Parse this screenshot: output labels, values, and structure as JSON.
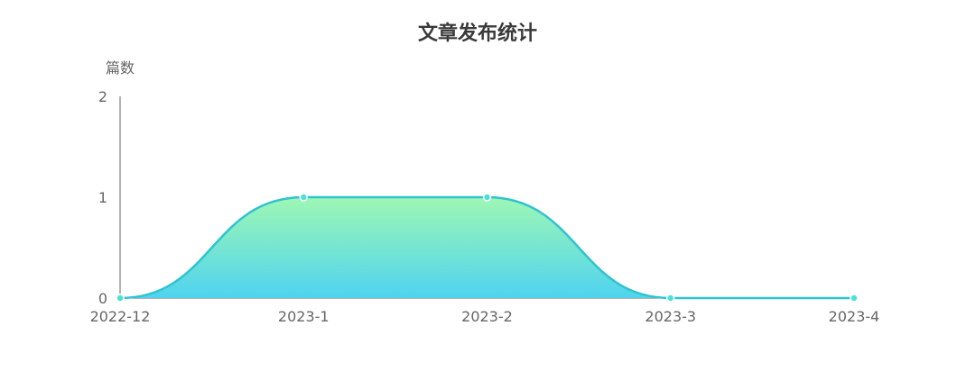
{
  "chart_data": {
    "type": "area",
    "title": "文章发布统计",
    "ylabel": "篇数",
    "xlabel": "",
    "categories": [
      "2022-12",
      "2023-1",
      "2023-2",
      "2023-3",
      "2023-4"
    ],
    "series": [
      {
        "values": [
          0,
          1,
          1,
          0,
          0
        ]
      }
    ],
    "ylim": [
      0,
      2
    ],
    "yticks": [
      0,
      1,
      2
    ],
    "grid": false,
    "smooth": true,
    "colors": {
      "line": "#2ec3d0",
      "fill_top": "#9ef7b4",
      "fill_bottom": "#4fd3ef",
      "marker": "#4de0d8",
      "axis": "#666666",
      "text": "#666666",
      "title": "#3a3a3a"
    }
  }
}
